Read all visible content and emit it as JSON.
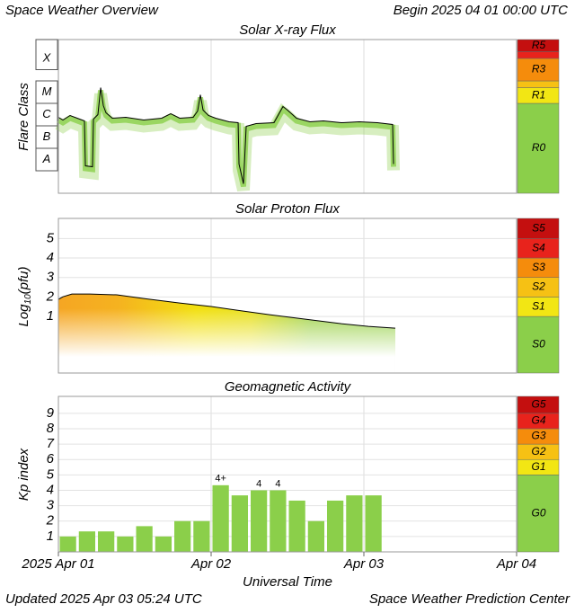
{
  "header": {
    "title": "Space Weather Overview",
    "begin": "Begin 2025 04 01 00:00 UTC"
  },
  "footer": {
    "updated": "Updated 2025 Apr 03 05:24 UTC",
    "center": "Space Weather Prediction Center"
  },
  "x_axis": {
    "label": "Universal Time",
    "lim": [
      0,
      72
    ],
    "ticks": [
      {
        "value": 0,
        "label": "2025 Apr 01"
      },
      {
        "value": 24,
        "label": "Apr 02"
      },
      {
        "value": 48,
        "label": "Apr 03"
      },
      {
        "value": 72,
        "label": "Apr 04"
      }
    ]
  },
  "chart_data": [
    {
      "type": "line",
      "title": "Solar X-ray Flux",
      "ylabel": "Flare Class",
      "color": "#000000",
      "fill": "#8bcf4a",
      "ylim": [
        -9,
        -2.16
      ],
      "yticks": [
        {
          "value": -7.5,
          "label": "A"
        },
        {
          "value": -6.5,
          "label": "B"
        },
        {
          "value": -5.5,
          "label": "C"
        },
        {
          "value": -4.5,
          "label": "M"
        },
        {
          "value": -3,
          "label": "X"
        }
      ],
      "x": [
        0,
        0.71,
        1.84,
        2.96,
        4.09,
        4.24,
        5.36,
        5.51,
        6.21,
        6.64,
        7.06,
        7.48,
        8.47,
        10.59,
        13.41,
        16.24,
        17.65,
        19.06,
        21.18,
        21.88,
        22.31,
        22.73,
        23.58,
        24.71,
        26.82,
        28.24,
        28.38,
        29.08,
        29.51,
        31.06,
        33.88,
        34.59,
        35.29,
        36.0,
        37.41,
        39.53,
        41.65,
        44.47,
        47.29,
        50.12,
        52.52,
        52.66
      ],
      "values": [
        -5.62,
        -5.74,
        -5.54,
        -5.66,
        -5.78,
        -7.78,
        -7.82,
        -5.7,
        -5.5,
        -4.3,
        -5.1,
        -5.42,
        -5.66,
        -5.62,
        -5.74,
        -5.66,
        -5.46,
        -5.66,
        -5.62,
        -5.34,
        -4.62,
        -5.3,
        -5.54,
        -5.66,
        -5.82,
        -5.86,
        -7.7,
        -8.58,
        -6.02,
        -5.9,
        -5.86,
        -5.5,
        -5.14,
        -5.3,
        -5.66,
        -5.82,
        -5.78,
        -5.86,
        -5.82,
        -5.86,
        -5.94,
        -7.7
      ],
      "scale": [
        {
          "label": "R0",
          "min": -9,
          "color": "#8bcf4a"
        },
        {
          "label": "R1",
          "min": -5,
          "color": "#f2e614"
        },
        {
          "label": null,
          "min": -4.3,
          "color": "#f6c114"
        },
        {
          "label": "R3",
          "min": -4,
          "color": "#f58c0c"
        },
        {
          "label": null,
          "min": -3,
          "color": "#e8231c"
        },
        {
          "label": "R5",
          "min": -2.7,
          "color": "#c40f0f"
        }
      ]
    },
    {
      "type": "area",
      "title": "Solar Proton Flux",
      "ylabel": {
        "base": "Log",
        "sub": "10",
        "rest": "(pfu)"
      },
      "color": "#000000",
      "ylim": [
        -1.9,
        6.03
      ],
      "yticks": [
        1,
        2,
        3,
        4,
        5
      ],
      "grid": true,
      "x": [
        0,
        0.71,
        2.12,
        4.94,
        9.18,
        13.41,
        19.06,
        24.0,
        28.94,
        33.18,
        38.82,
        44.47,
        48.71,
        52.94
      ],
      "values": [
        1.88,
        2.01,
        2.15,
        2.15,
        2.11,
        1.92,
        1.69,
        1.51,
        1.28,
        1.09,
        0.86,
        0.63,
        0.49,
        0.4
      ],
      "scale": [
        {
          "label": "S0",
          "min": -1.9,
          "color": "#8bcf4a"
        },
        {
          "label": "S1",
          "min": 1,
          "color": "#f2e614"
        },
        {
          "label": "S2",
          "min": 2,
          "color": "#f6c114"
        },
        {
          "label": "S3",
          "min": 3,
          "color": "#f58c0c"
        },
        {
          "label": "S4",
          "min": 4,
          "color": "#e8231c"
        },
        {
          "label": "S5",
          "min": 5,
          "color": "#c40f0f"
        }
      ]
    },
    {
      "type": "bar",
      "title": "Geomagnetic Activity",
      "ylabel": "Kp index",
      "color": "#8bcf4a",
      "ylim": [
        0,
        10.1
      ],
      "yticks": [
        1,
        2,
        3,
        4,
        5,
        6,
        7,
        8,
        9
      ],
      "grid": true,
      "x": [
        0,
        3,
        6,
        9,
        12,
        15,
        18,
        21,
        24,
        27,
        30,
        33,
        36,
        39,
        42,
        45,
        48
      ],
      "values": [
        1.0,
        1.33,
        1.33,
        1.0,
        1.67,
        1.0,
        2.0,
        2.0,
        4.33,
        3.67,
        4.0,
        4.0,
        3.33,
        2.0,
        3.33,
        3.67,
        3.67
      ],
      "value_labels": [
        null,
        null,
        null,
        null,
        null,
        null,
        null,
        null,
        "4+",
        null,
        "4",
        "4",
        null,
        null,
        null,
        null,
        null
      ],
      "scale": [
        {
          "label": "G0",
          "min": 0,
          "color": "#8bcf4a"
        },
        {
          "label": "G1",
          "min": 5,
          "color": "#f2e614"
        },
        {
          "label": "G2",
          "min": 6,
          "color": "#f6c114"
        },
        {
          "label": "G3",
          "min": 7,
          "color": "#f58c0c"
        },
        {
          "label": "G4",
          "min": 8,
          "color": "#e8231c"
        },
        {
          "label": "G5",
          "min": 9,
          "color": "#c40f0f"
        }
      ]
    }
  ]
}
